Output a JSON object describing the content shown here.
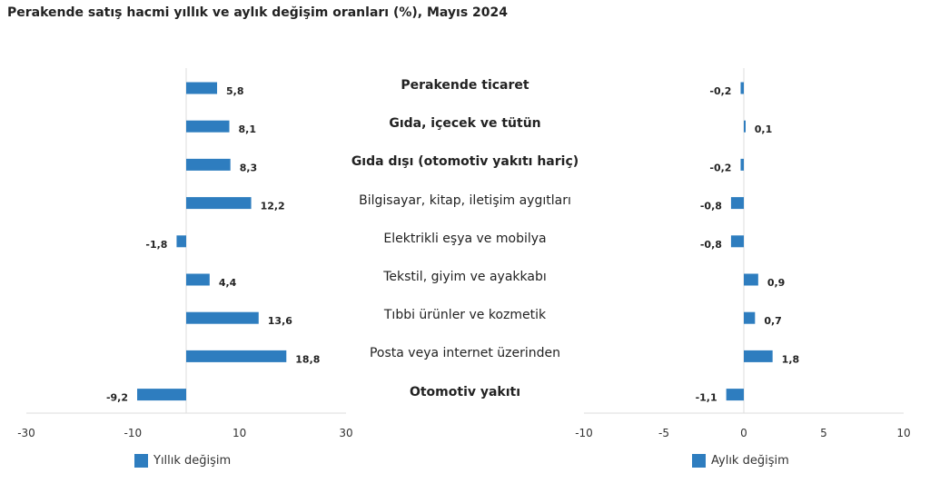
{
  "chart_data": [
    {
      "type": "bar",
      "orientation": "horizontal",
      "title": "Perakende satış hacmi yıllık ve aylık değişim oranları (%), Mayıs 2024",
      "categories": [
        "Perakende ticaret",
        "Gıda, içecek ve tütün",
        "Gıda dışı (otomotiv yakıtı hariç)",
        "Bilgisayar, kitap, iletişim aygıtları",
        "Elektrikli eşya ve mobilya",
        "Tekstil, giyim ve ayakkabı",
        "Tıbbi ürünler ve kozmetik",
        "Posta veya internet üzerinden",
        "Otomotiv yakıtı"
      ],
      "bold_categories": [
        0,
        1,
        2,
        8
      ],
      "series": [
        {
          "name": "Yıllık değişim",
          "values": [
            5.8,
            8.1,
            8.3,
            12.2,
            -1.8,
            4.4,
            13.6,
            18.8,
            -9.2
          ],
          "labels": [
            "5,8",
            "8,1",
            "8,3",
            "12,2",
            "-1,8",
            "4,4",
            "13,6",
            "18,8",
            "-9,2"
          ]
        }
      ],
      "xlim": [
        -30,
        30
      ],
      "xticks": [
        -30,
        -10,
        10,
        30
      ],
      "legend": "bottom",
      "color": "#2e7dbf"
    },
    {
      "type": "bar",
      "orientation": "horizontal",
      "series": [
        {
          "name": "Aylık değişim",
          "values": [
            -0.2,
            0.1,
            -0.2,
            -0.8,
            -0.8,
            0.9,
            0.7,
            1.8,
            -1.1
          ],
          "labels": [
            "-0,2",
            "0,1",
            "-0,2",
            "-0,8",
            "-0,8",
            "0,9",
            "0,7",
            "1,8",
            "-1,1"
          ]
        }
      ],
      "xlim": [
        -10,
        10
      ],
      "xticks": [
        -10,
        -5,
        0,
        5,
        10
      ],
      "legend": "bottom",
      "color": "#2e7dbf"
    }
  ]
}
